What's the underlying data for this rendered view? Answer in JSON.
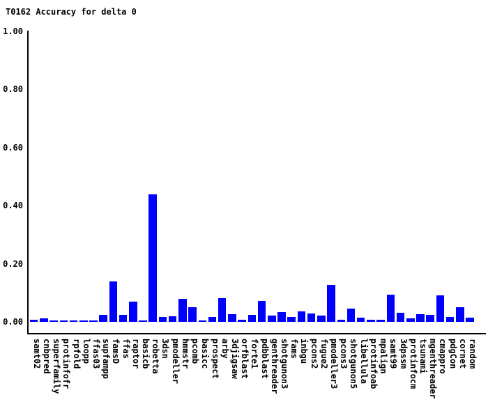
{
  "chart_data": {
    "type": "bar",
    "title": "T0162 Accuracy for delta 0",
    "xlabel": "",
    "ylabel": "",
    "ylim": [
      0,
      1.0
    ],
    "y_tick_labels": [
      "1.00",
      "0.80",
      "0.60",
      "0.40",
      "0.20",
      "0.00"
    ],
    "grid": false,
    "legend": false,
    "bar_color": "#0000ff",
    "axis_color": "#000000",
    "categories": [
      "samt02",
      "cnbpred",
      "superfamily",
      "protinfofr",
      "rpfold",
      "loopp",
      "ffas03",
      "supfampp",
      "famsD",
      "ffas",
      "raptor",
      "basicb",
      "robetta",
      "3dsn",
      "pmodeller",
      "hmmstr",
      "pcomb",
      "basicc",
      "prospect",
      "arby",
      "3djigsaw",
      "orfblast",
      "forte1",
      "pdbblast",
      "genthreader",
      "shotgunon3",
      "fams",
      "inbgu",
      "pcons2",
      "fugue2",
      "pmodeller3",
      "pcons3",
      "shotgunon5",
      "libellula",
      "protinfoab",
      "mpalign",
      "samt99",
      "3dpssm",
      "protinfocm",
      "tsunami",
      "mgenthreader",
      "cmappro",
      "pdgCon",
      "cornet",
      "random"
    ],
    "values": [
      0.007,
      0.012,
      0.005,
      0.005,
      0.005,
      0.005,
      0.005,
      0.025,
      0.14,
      0.025,
      0.07,
      0.005,
      0.44,
      0.017,
      0.019,
      0.078,
      0.05,
      0.005,
      0.017,
      0.082,
      0.026,
      0.006,
      0.024,
      0.072,
      0.022,
      0.033,
      0.017,
      0.037,
      0.029,
      0.022,
      0.126,
      0.006,
      0.046,
      0.014,
      0.006,
      0.006,
      0.093,
      0.03,
      0.013,
      0.026,
      0.025,
      0.092,
      0.016,
      0.051,
      0.014
    ]
  }
}
